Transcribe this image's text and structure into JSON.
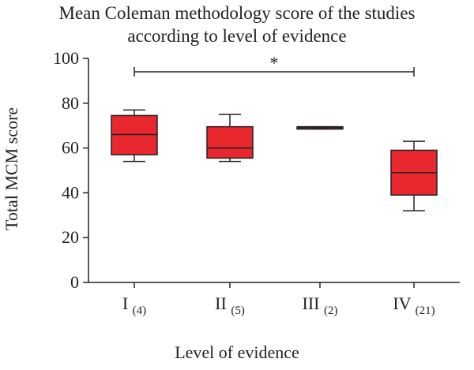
{
  "chart_data": {
    "type": "box",
    "title_lines": [
      "Mean Coleman methodology score of the studies",
      "according to level of evidence"
    ],
    "xlabel": "Level of evidence",
    "ylabel": "Total MCM score",
    "ylim": [
      0,
      100
    ],
    "yticks": [
      0,
      20,
      40,
      60,
      80,
      100
    ],
    "categories": [
      {
        "label": "I",
        "n": "(4)"
      },
      {
        "label": "II",
        "n": "(5)"
      },
      {
        "label": "III",
        "n": "(2)"
      },
      {
        "label": "IV",
        "n": "(21)"
      }
    ],
    "boxes": [
      {
        "min": 54,
        "q1": 57,
        "median": 66,
        "q3": 74.5,
        "max": 77
      },
      {
        "min": 54,
        "q1": 55.5,
        "median": 60,
        "q3": 69.5,
        "max": 75
      },
      {
        "min": 68.5,
        "q1": 68.5,
        "median": 69,
        "q3": 69.5,
        "max": 69.5
      },
      {
        "min": 32,
        "q1": 39,
        "median": 49,
        "q3": 59,
        "max": 63
      }
    ],
    "significance": {
      "from": 0,
      "to": 3,
      "y": 94,
      "label": "*"
    },
    "colors": {
      "box_fill": "#e8272f",
      "stroke": "#222222"
    }
  }
}
